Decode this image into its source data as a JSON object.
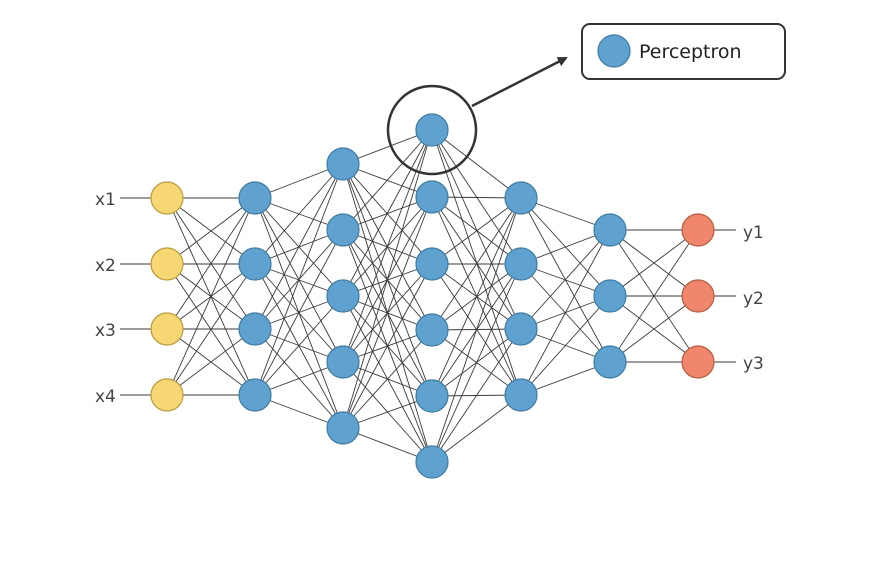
{
  "network": {
    "layers": [
      {
        "role": "input",
        "nodes": 4
      },
      {
        "role": "hidden",
        "nodes": 4
      },
      {
        "role": "hidden",
        "nodes": 5
      },
      {
        "role": "hidden",
        "nodes": 6
      },
      {
        "role": "hidden",
        "nodes": 4
      },
      {
        "role": "hidden",
        "nodes": 3
      },
      {
        "role": "output",
        "nodes": 3
      }
    ],
    "input_labels": [
      "x1",
      "x2",
      "x3",
      "x4"
    ],
    "output_labels": [
      "y1",
      "y2",
      "y3"
    ]
  },
  "legend": {
    "label": "Perceptron"
  },
  "colors": {
    "input_fill": "#f7d774",
    "input_stroke": "#b99a3a",
    "hidden_fill": "#5fa2cf",
    "hidden_stroke": "#3e7ba3",
    "output_fill": "#f0866b",
    "output_stroke": "#b65a43",
    "edge": "#3a3a3a",
    "highlight": "#333333"
  }
}
